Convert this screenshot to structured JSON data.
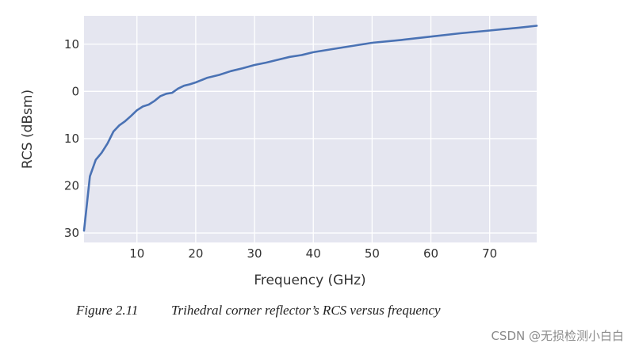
{
  "chart_data": {
    "type": "line",
    "title": "",
    "xlabel": "Frequency (GHz)",
    "ylabel": "RCS (dBsm)",
    "xlim": [
      1,
      78
    ],
    "ylim": [
      -32,
      16
    ],
    "x_ticks": [
      10,
      20,
      30,
      40,
      50,
      60,
      70
    ],
    "y_ticks": [
      10,
      0,
      -10,
      -20,
      -30
    ],
    "y_tick_labels": [
      "10",
      "0",
      "10",
      "20",
      "30"
    ],
    "grid": true,
    "legend": "none",
    "colors": {
      "plot_bg": "#e5e6f0",
      "grid": "#ffffff",
      "line": "#4a72b4"
    },
    "series": [
      {
        "x": [
          1,
          2,
          3,
          4,
          5,
          6,
          7,
          8,
          9,
          10,
          11,
          12,
          13,
          14,
          15,
          16,
          17,
          18,
          19,
          20,
          22,
          24,
          26,
          28,
          30,
          32,
          34,
          36,
          38,
          40,
          45,
          50,
          55,
          60,
          65,
          70,
          75,
          78
        ],
        "y": [
          -29.5,
          -18,
          -14.5,
          -13,
          -11,
          -8.5,
          -7.2,
          -6.3,
          -5.2,
          -4,
          -3.2,
          -2.8,
          -2,
          -1,
          -0.5,
          -0.3,
          0.6,
          1.2,
          1.5,
          1.9,
          2.9,
          3.5,
          4.3,
          4.9,
          5.6,
          6.1,
          6.7,
          7.3,
          7.7,
          8.3,
          9.3,
          10.3,
          10.9,
          11.6,
          12.3,
          12.9,
          13.5,
          13.9
        ]
      }
    ]
  },
  "caption": {
    "number": "Figure 2.11",
    "text": "Trihedral corner reflector’s RCS versus frequency"
  },
  "watermark": "CSDN @无损检测小白白"
}
